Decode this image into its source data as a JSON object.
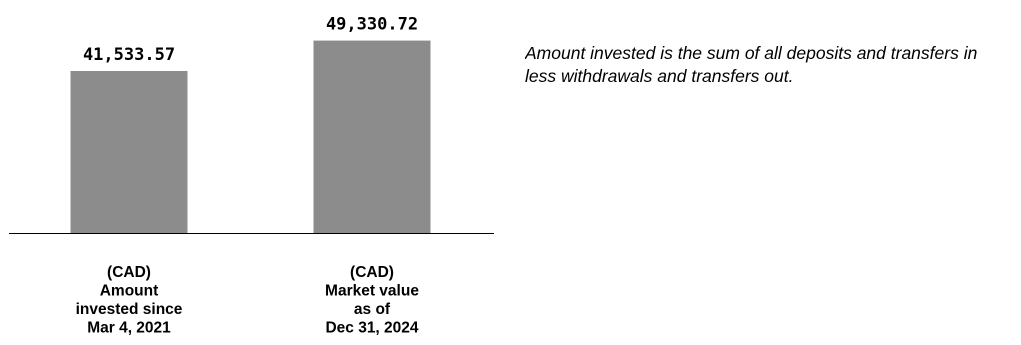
{
  "chart_data": {
    "type": "bar",
    "categories": [
      [
        "(CAD)",
        "Amount",
        "invested since",
        "Mar 4, 2021"
      ],
      [
        "(CAD)",
        "Market value",
        "as of",
        "Dec 31, 2024"
      ]
    ],
    "values": [
      41533.57,
      49330.72
    ],
    "value_labels": [
      "41,533.57",
      "49,330.72"
    ],
    "bar_color": "#8c8c8c",
    "axis_color": "#000000",
    "grid": false,
    "legend": "none"
  },
  "note": {
    "text": "Amount invested is the sum of all deposits and transfers in\nless withdrawals and transfers out."
  }
}
